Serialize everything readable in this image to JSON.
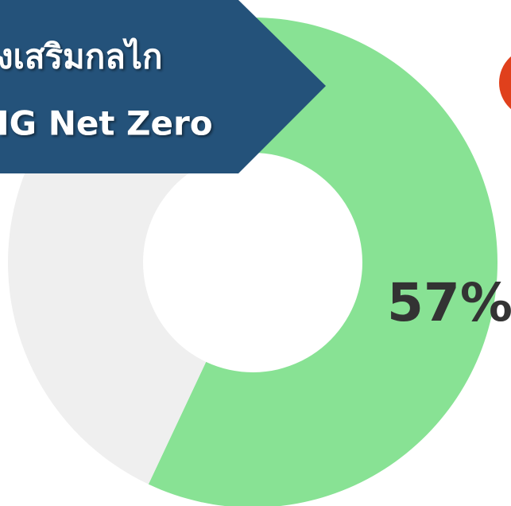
{
  "chart_data": {
    "type": "donut",
    "title": [
      "งเสริมกลไก",
      "IG Net Zero"
    ],
    "values": [
      57,
      43
    ],
    "value_labels": [
      "57%",
      null
    ],
    "colors": [
      "#88e294",
      "#efefef"
    ]
  }
}
